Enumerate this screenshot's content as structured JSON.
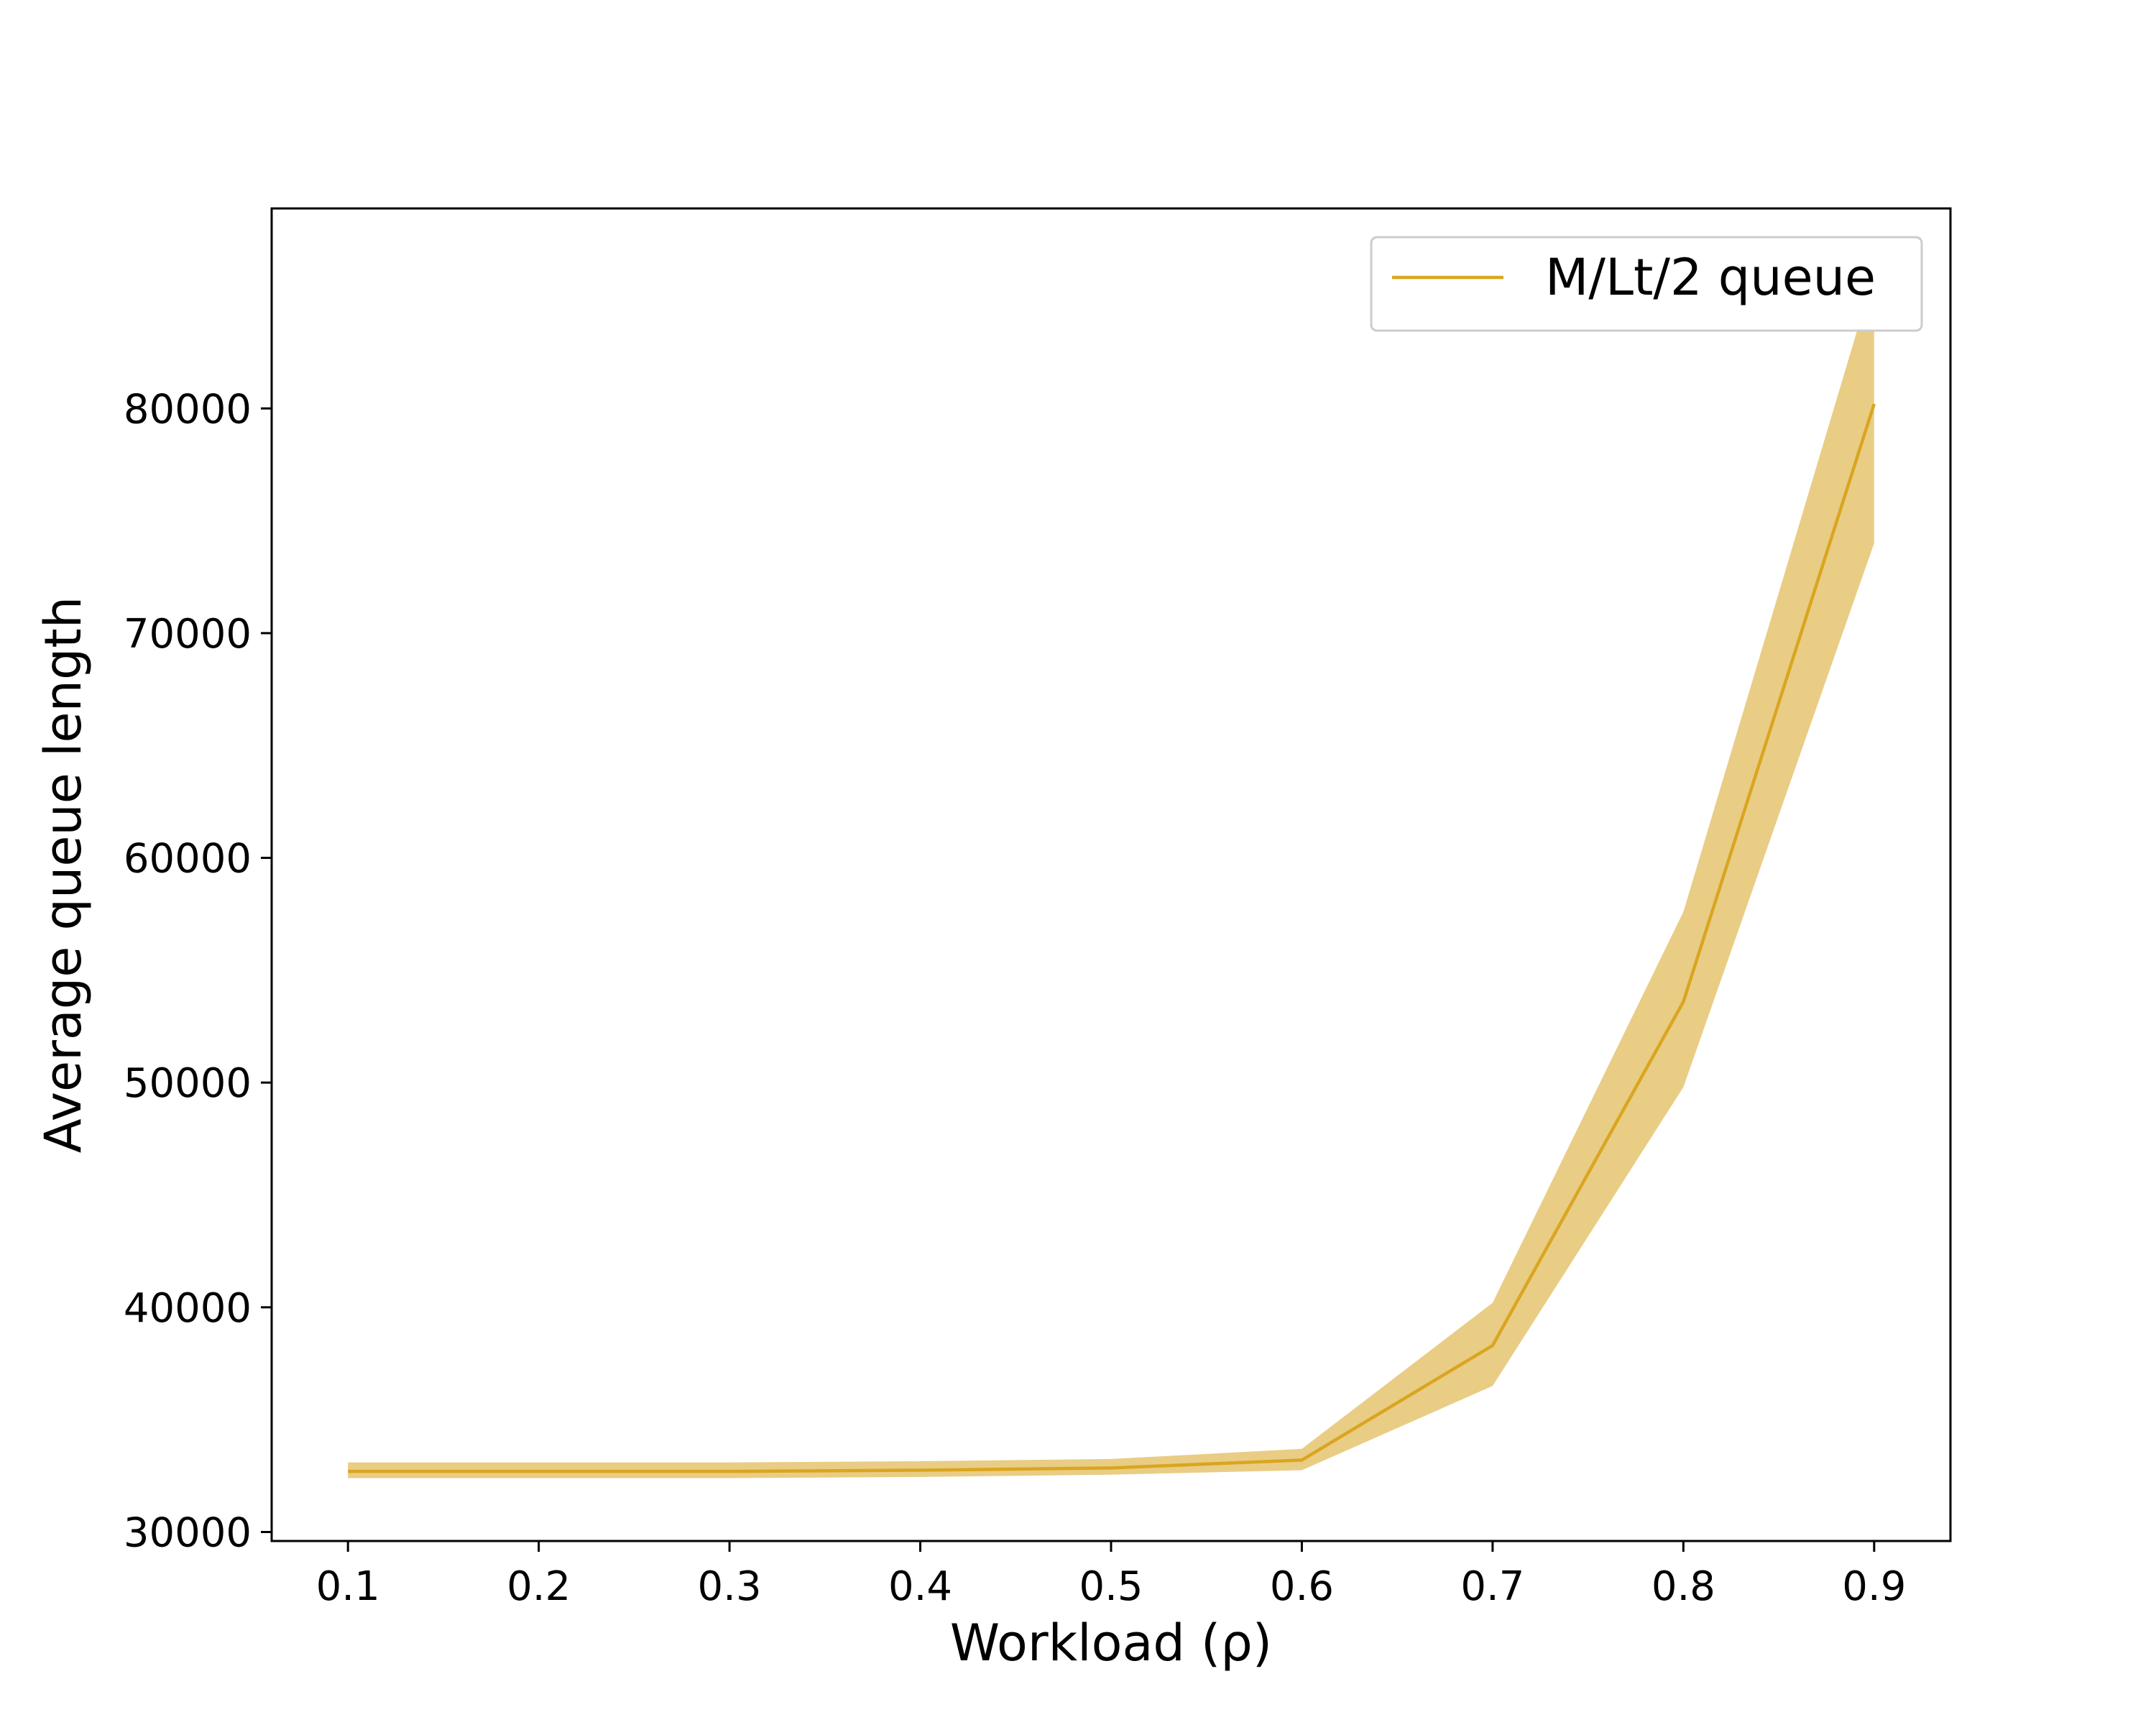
{
  "chart_data": {
    "type": "line",
    "xlabel": "Workload (ρ)",
    "ylabel": "Average queue length",
    "x": [
      0.1,
      0.2,
      0.3,
      0.4,
      0.5,
      0.6,
      0.7,
      0.8,
      0.9
    ],
    "xticks": [
      "0.1",
      "0.2",
      "0.3",
      "0.4",
      "0.5",
      "0.6",
      "0.7",
      "0.8",
      "0.9"
    ],
    "yticks": [
      "30000",
      "40000",
      "50000",
      "60000",
      "70000",
      "80000"
    ],
    "ytick_values": [
      30000,
      40000,
      50000,
      60000,
      70000,
      80000
    ],
    "xlim": [
      0.06,
      0.94
    ],
    "ylim": [
      29600,
      88900
    ],
    "grid": false,
    "legend_position": "top-right",
    "series": [
      {
        "name": "M/Lt/2 queue",
        "color": "#DAA520",
        "band_color": "#E9CD85",
        "values": [
          32700,
          32700,
          32700,
          32750,
          32850,
          33200,
          38300,
          53600,
          80200
        ],
        "lower": [
          32400,
          32400,
          32400,
          32450,
          32550,
          32750,
          36500,
          49800,
          74000
        ],
        "upper": [
          33100,
          33100,
          33100,
          33150,
          33250,
          33700,
          40200,
          57600,
          86000
        ]
      }
    ]
  }
}
